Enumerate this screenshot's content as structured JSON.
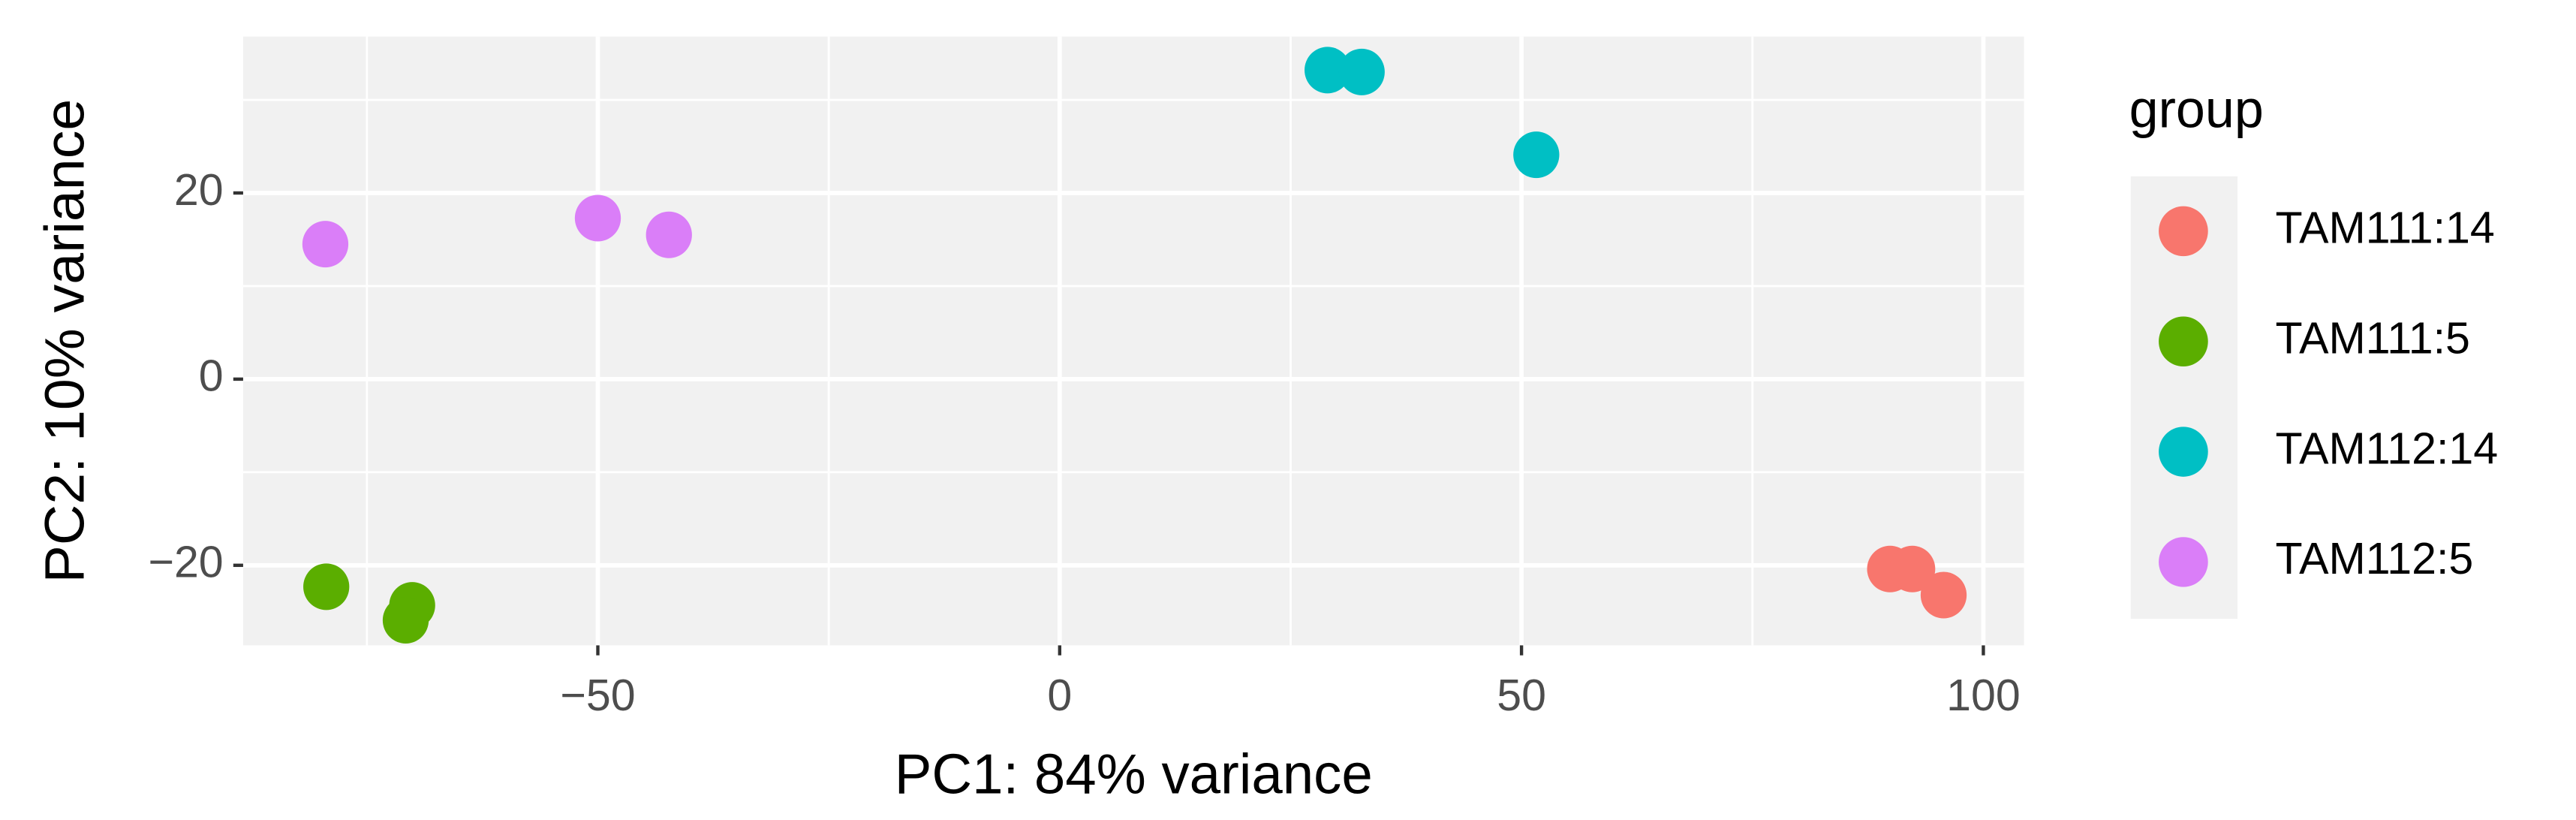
{
  "chart_data": {
    "type": "scatter",
    "x_label": "PC1: 84% variance",
    "y_label": "PC2: 10% variance",
    "legend_title": "group",
    "legend_position": "right",
    "grid": true,
    "xlim": [
      -88.4,
      104.4
    ],
    "ylim": [
      -28.6,
      36.8
    ],
    "xticks": [
      {
        "value": -50,
        "label": "−50"
      },
      0,
      50,
      100
    ],
    "yticks": [
      {
        "value": -20,
        "label": "−20"
      },
      0,
      20
    ],
    "xminor": [
      -75,
      -25,
      25,
      75
    ],
    "yminor": [
      -10,
      10,
      30
    ],
    "series": [
      {
        "name": "TAM111:14",
        "color": "#F8766D",
        "x": [
          89.9,
          92.3,
          95.7
        ],
        "values": [
          -20.4,
          -20.4,
          -23.2
        ]
      },
      {
        "name": "TAM111:5",
        "color": "#5BAE00",
        "x": [
          -79.4,
          -70.1,
          -70.8
        ],
        "values": [
          -22.3,
          -24.3,
          -25.9
        ]
      },
      {
        "name": "TAM112:14",
        "color": "#00BFC4",
        "x": [
          29.0,
          32.7,
          51.6
        ],
        "values": [
          33.2,
          33.0,
          24.1
        ]
      },
      {
        "name": "TAM112:5",
        "color": "#DA7EF8",
        "x": [
          -79.5,
          -50.0,
          -42.3
        ],
        "values": [
          14.5,
          17.3,
          15.5
        ]
      }
    ]
  }
}
